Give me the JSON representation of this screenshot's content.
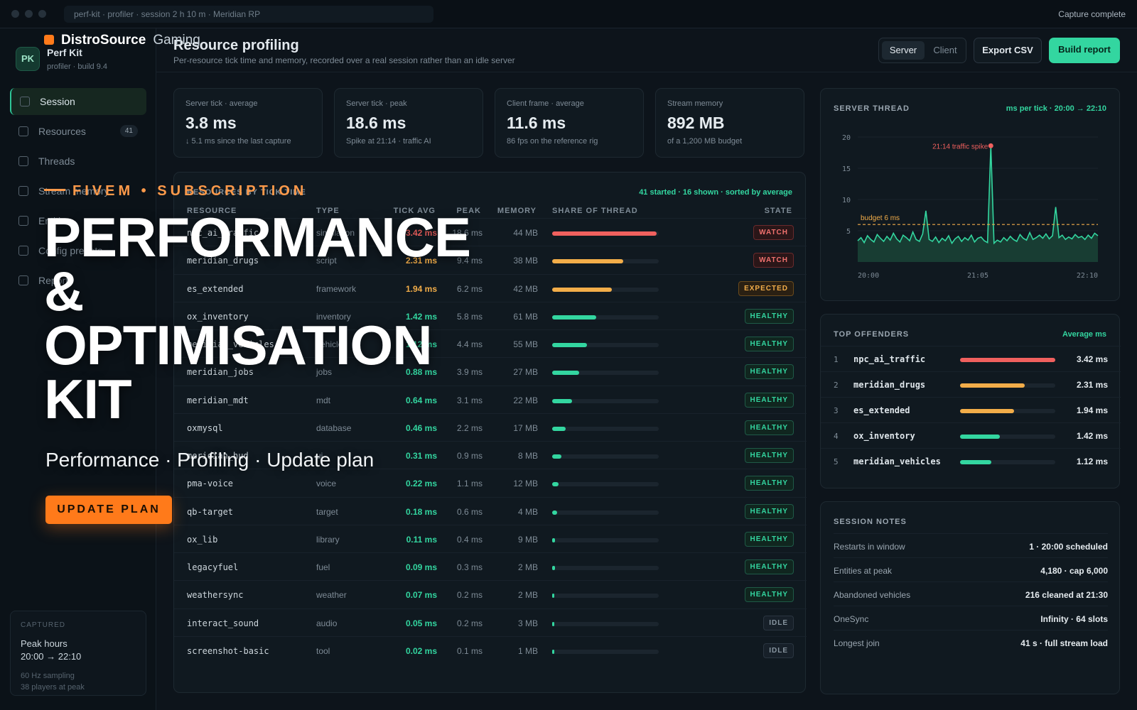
{
  "window": {
    "path": "perf-kit · profiler · session 2 h 10 m · Meridian RP",
    "status": "Capture complete"
  },
  "sidebar": {
    "badge": "PK",
    "app_name": "Perf Kit",
    "app_sub": "profiler · build 9.4",
    "items": [
      {
        "label": "Session",
        "active": true
      },
      {
        "label": "Resources",
        "count": "41"
      },
      {
        "label": "Threads"
      },
      {
        "label": "Stream memory"
      },
      {
        "label": "Entities"
      },
      {
        "label": "Config presets"
      },
      {
        "label": "Report"
      }
    ],
    "captured": {
      "label": "CAPTURED",
      "title": "Peak hours",
      "range": "20:00 → 22:10",
      "sampling": "60 Hz sampling",
      "players": "38 players at peak"
    }
  },
  "header": {
    "title": "Resource profiling",
    "subtitle": "Per-resource tick time and memory, recorded over a real session rather than an idle server",
    "seg_server": "Server",
    "seg_client": "Client",
    "export_label": "Export CSV",
    "build_label": "Build report"
  },
  "stats": [
    {
      "label": "Server tick · average",
      "value": "3.8 ms",
      "sub": "↓ 5.1 ms since the last capture"
    },
    {
      "label": "Server tick · peak",
      "value": "18.6 ms",
      "sub": "Spike at 21:14 · traffic AI"
    },
    {
      "label": "Client frame · average",
      "value": "11.6 ms",
      "sub": "86 fps on the reference rig"
    },
    {
      "label": "Stream memory",
      "value": "892 MB",
      "sub": "of a 1,200 MB budget"
    }
  ],
  "table": {
    "title": "RESOURCES BY TICK TIME",
    "meta": "41 started · 16 shown · sorted by average",
    "columns": {
      "resource": "RESOURCE",
      "type": "TYPE",
      "avg": "TICK AVG",
      "peak": "PEAK",
      "memory": "MEMORY",
      "share": "SHARE OF THREAD",
      "state": "STATE"
    },
    "rows": [
      {
        "name": "npc_ai_traffic",
        "type": "simulation",
        "avg": "3.42 ms",
        "peak": "18.6 ms",
        "mem": "44 MB",
        "share": 1.0,
        "state": "WATCH",
        "tone": "red"
      },
      {
        "name": "meridian_drugs",
        "type": "script",
        "avg": "2.31 ms",
        "peak": "9.4 ms",
        "mem": "38 MB",
        "share": 0.68,
        "state": "WATCH",
        "tone": "amber"
      },
      {
        "name": "es_extended",
        "type": "framework",
        "avg": "1.94 ms",
        "peak": "6.2 ms",
        "mem": "42 MB",
        "share": 0.57,
        "state": "EXPECTED",
        "tone": "amber"
      },
      {
        "name": "ox_inventory",
        "type": "inventory",
        "avg": "1.42 ms",
        "peak": "5.8 ms",
        "mem": "61 MB",
        "share": 0.42,
        "state": "HEALTHY",
        "tone": "green"
      },
      {
        "name": "meridian_vehicles",
        "type": "vehicles",
        "avg": "1.12 ms",
        "peak": "4.4 ms",
        "mem": "55 MB",
        "share": 0.33,
        "state": "HEALTHY",
        "tone": "green"
      },
      {
        "name": "meridian_jobs",
        "type": "jobs",
        "avg": "0.88 ms",
        "peak": "3.9 ms",
        "mem": "27 MB",
        "share": 0.26,
        "state": "HEALTHY",
        "tone": "green"
      },
      {
        "name": "meridian_mdt",
        "type": "mdt",
        "avg": "0.64 ms",
        "peak": "3.1 ms",
        "mem": "22 MB",
        "share": 0.19,
        "state": "HEALTHY",
        "tone": "green"
      },
      {
        "name": "oxmysql",
        "type": "database",
        "avg": "0.46 ms",
        "peak": "2.2 ms",
        "mem": "17 MB",
        "share": 0.13,
        "state": "HEALTHY",
        "tone": "green"
      },
      {
        "name": "meridian_hud",
        "type": "ui",
        "avg": "0.31 ms",
        "peak": "0.9 ms",
        "mem": "8 MB",
        "share": 0.09,
        "state": "HEALTHY",
        "tone": "green"
      },
      {
        "name": "pma-voice",
        "type": "voice",
        "avg": "0.22 ms",
        "peak": "1.1 ms",
        "mem": "12 MB",
        "share": 0.06,
        "state": "HEALTHY",
        "tone": "green"
      },
      {
        "name": "qb-target",
        "type": "target",
        "avg": "0.18 ms",
        "peak": "0.6 ms",
        "mem": "4 MB",
        "share": 0.05,
        "state": "HEALTHY",
        "tone": "green"
      },
      {
        "name": "ox_lib",
        "type": "library",
        "avg": "0.11 ms",
        "peak": "0.4 ms",
        "mem": "9 MB",
        "share": 0.03,
        "state": "HEALTHY",
        "tone": "green"
      },
      {
        "name": "legacyfuel",
        "type": "fuel",
        "avg": "0.09 ms",
        "peak": "0.3 ms",
        "mem": "2 MB",
        "share": 0.03,
        "state": "HEALTHY",
        "tone": "green"
      },
      {
        "name": "weathersync",
        "type": "weather",
        "avg": "0.07 ms",
        "peak": "0.2 ms",
        "mem": "2 MB",
        "share": 0.02,
        "state": "HEALTHY",
        "tone": "green"
      },
      {
        "name": "interact_sound",
        "type": "audio",
        "avg": "0.05 ms",
        "peak": "0.2 ms",
        "mem": "3 MB",
        "share": 0.015,
        "state": "IDLE",
        "tone": "grey"
      },
      {
        "name": "screenshot-basic",
        "type": "tool",
        "avg": "0.02 ms",
        "peak": "0.1 ms",
        "mem": "1 MB",
        "share": 0.01,
        "state": "IDLE",
        "tone": "grey"
      }
    ]
  },
  "colors": {
    "red": "#f0605e",
    "amber": "#f2ad49",
    "green": "#33d6a0",
    "grey": "#8895a0",
    "accent": "#33d6a0",
    "promo": "#ff7a1a"
  },
  "chart_panel": {
    "title": "SERVER THREAD",
    "meta": "ms per tick · 20:00 → 22:10"
  },
  "chart_data": {
    "type": "area",
    "title": "",
    "xlabel": "",
    "ylabel": "",
    "x_ticks": [
      "20:00",
      "21:05",
      "22:10"
    ],
    "y_ticks": [
      5,
      10,
      15,
      20
    ],
    "ylim": [
      0,
      20
    ],
    "grid": true,
    "budget": {
      "value": 6,
      "label": "budget 6 ms"
    },
    "annotation": {
      "label": "21:14 traffic spike",
      "index": 41,
      "value": 18.6
    },
    "series": [
      {
        "values": [
          3.4,
          3.9,
          3.1,
          4.2,
          3.6,
          3.2,
          4.4,
          3.8,
          3.3,
          4.1,
          3.5,
          4.6,
          3.7,
          3.2,
          4.3,
          3.9,
          3.4,
          4.8,
          3.6,
          3.3,
          4.5,
          8.2,
          3.6,
          3.3,
          4.0,
          3.1,
          3.8,
          3.4,
          4.2,
          3.0,
          3.7,
          4.1,
          3.3,
          3.9,
          3.5,
          4.3,
          3.2,
          3.8,
          4.0,
          3.4,
          3.1,
          18.6,
          3.0,
          3.5,
          3.2,
          3.9,
          3.4,
          4.1,
          3.6,
          3.3,
          4.4,
          3.8,
          3.5,
          4.7,
          3.6,
          3.9,
          4.3,
          3.8,
          4.5,
          3.7,
          4.2,
          8.8,
          3.9,
          4.3,
          3.6,
          4.0,
          3.7,
          4.4,
          3.9,
          4.1,
          3.6,
          4.3,
          3.8,
          4.6,
          4.2
        ]
      }
    ]
  },
  "offenders": {
    "title": "TOP OFFENDERS",
    "meta": "Average ms",
    "items": [
      {
        "rank": "1",
        "name": "npc_ai_traffic",
        "value": "3.42 ms",
        "share": 1.0,
        "tone": "red"
      },
      {
        "rank": "2",
        "name": "meridian_drugs",
        "value": "2.31 ms",
        "share": 0.68,
        "tone": "amber"
      },
      {
        "rank": "3",
        "name": "es_extended",
        "value": "1.94 ms",
        "share": 0.57,
        "tone": "amber"
      },
      {
        "rank": "4",
        "name": "ox_inventory",
        "value": "1.42 ms",
        "share": 0.42,
        "tone": "green"
      },
      {
        "rank": "5",
        "name": "meridian_vehicles",
        "value": "1.12 ms",
        "share": 0.33,
        "tone": "green"
      }
    ]
  },
  "notes": {
    "title": "SESSION NOTES",
    "items": [
      {
        "k": "Restarts in window",
        "v": "1 · 20:00 scheduled"
      },
      {
        "k": "Entities at peak",
        "v": "4,180 · cap 6,000"
      },
      {
        "k": "Abandoned vehicles",
        "v": "216 cleaned at 21:30"
      },
      {
        "k": "OneSync",
        "v": "Infinity · 64 slots"
      },
      {
        "k": "Longest join",
        "v": "41 s · full stream load"
      }
    ]
  },
  "promo": {
    "brand": "DistroSource",
    "brand_suffix": "Gaming",
    "kicker": "FIVEM • SUBSCRIPTION",
    "headline_1": "PERFORMANCE",
    "headline_2": "&",
    "headline_3": "OPTIMISATION",
    "headline_4": "KIT",
    "tagline": "Performance · Profiling · Update plan",
    "cta": "UPDATE PLAN"
  }
}
